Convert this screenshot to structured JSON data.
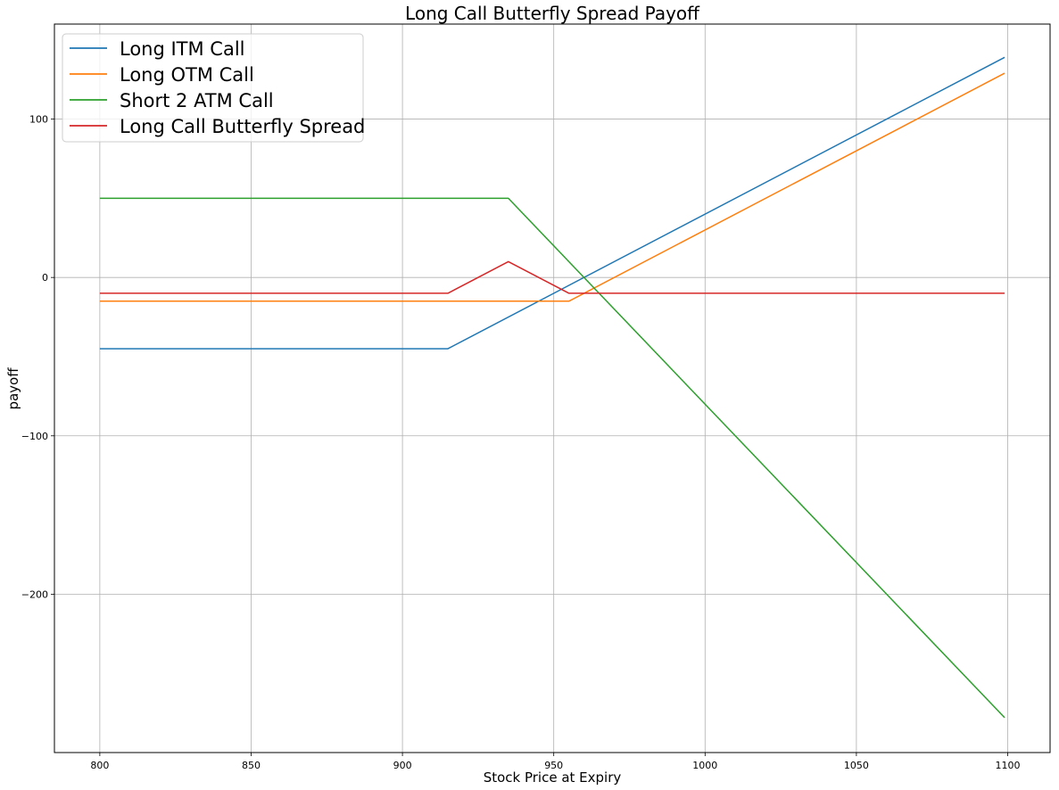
{
  "chart_data": {
    "type": "line",
    "title": "Long Call Butterfly Spread Payoff",
    "xlabel": "Stock Price at Expiry",
    "ylabel": "payoff",
    "xlim": [
      785,
      1114
    ],
    "ylim": [
      -300,
      160
    ],
    "xticks": [
      800,
      850,
      900,
      950,
      1000,
      1050,
      1100
    ],
    "yticks": [
      100,
      0,
      -100,
      -200
    ],
    "ytick_labels": [
      "100",
      "0",
      "−100",
      "−200"
    ],
    "grid": true,
    "legend_position": "top-left",
    "series": [
      {
        "name": "Long ITM Call",
        "color": "#1f77b4",
        "points": [
          [
            800,
            -45
          ],
          [
            915,
            -45
          ],
          [
            1099,
            139
          ]
        ]
      },
      {
        "name": "Long OTM Call",
        "color": "#ff7f0e",
        "points": [
          [
            800,
            -15
          ],
          [
            955,
            -15
          ],
          [
            1099,
            129
          ]
        ]
      },
      {
        "name": "Short 2 ATM Call",
        "color": "#2ca02c",
        "points": [
          [
            800,
            50
          ],
          [
            935,
            50
          ],
          [
            1099,
            -278
          ]
        ]
      },
      {
        "name": "Long Call Butterfly Spread",
        "color": "#d62728",
        "points": [
          [
            800,
            -10
          ],
          [
            915,
            -10
          ],
          [
            935,
            10
          ],
          [
            955,
            -10
          ],
          [
            1099,
            -10
          ]
        ]
      }
    ]
  }
}
